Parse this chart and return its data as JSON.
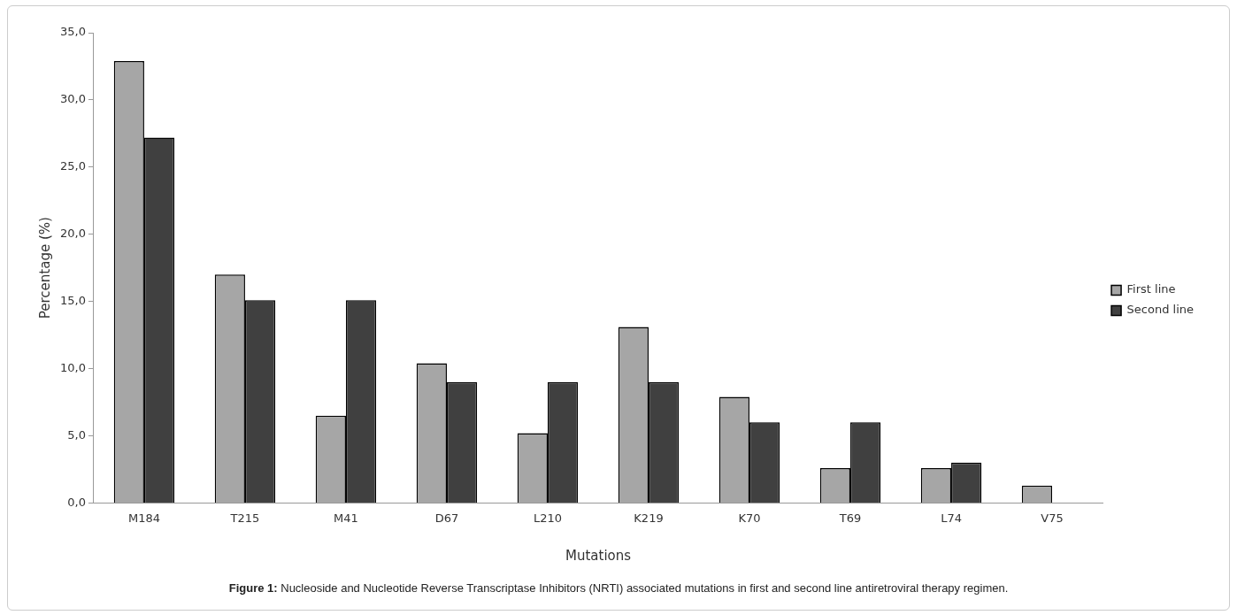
{
  "chart_data": {
    "type": "bar",
    "xlabel": "Mutations",
    "ylabel": "Percentage (%)",
    "categories": [
      "M184",
      "T215",
      "M41",
      "D67",
      "L210",
      "K219",
      "K70",
      "T69",
      "L74",
      "V75"
    ],
    "series": [
      {
        "name": "First line",
        "color": "#a6a6a6",
        "values": [
          32.9,
          17.0,
          6.5,
          10.4,
          5.2,
          13.1,
          7.9,
          2.6,
          2.6,
          1.3
        ]
      },
      {
        "name": "Second line",
        "color": "#404040",
        "values": [
          27.2,
          15.1,
          15.1,
          9.0,
          9.0,
          9.0,
          6.0,
          6.0,
          3.0,
          0
        ]
      }
    ],
    "ylim": [
      0,
      35
    ],
    "yticks": [
      {
        "value": 0,
        "label": "0,0"
      },
      {
        "value": 5,
        "label": "5,0"
      },
      {
        "value": 10,
        "label": "10,0"
      },
      {
        "value": 15,
        "label": "15,0"
      },
      {
        "value": 20,
        "label": "20,0"
      },
      {
        "value": 25,
        "label": "25,0"
      },
      {
        "value": 30,
        "label": "30,0"
      },
      {
        "value": 35,
        "label": "35,0"
      }
    ],
    "grid": false,
    "legend": "right",
    "annotations": [
      "Figure 1: Nucleoside and Nucleotide Reverse Transcriptase Inhibitors (NRTI) associated mutations in first and second line antiretroviral therapy regimen."
    ]
  }
}
